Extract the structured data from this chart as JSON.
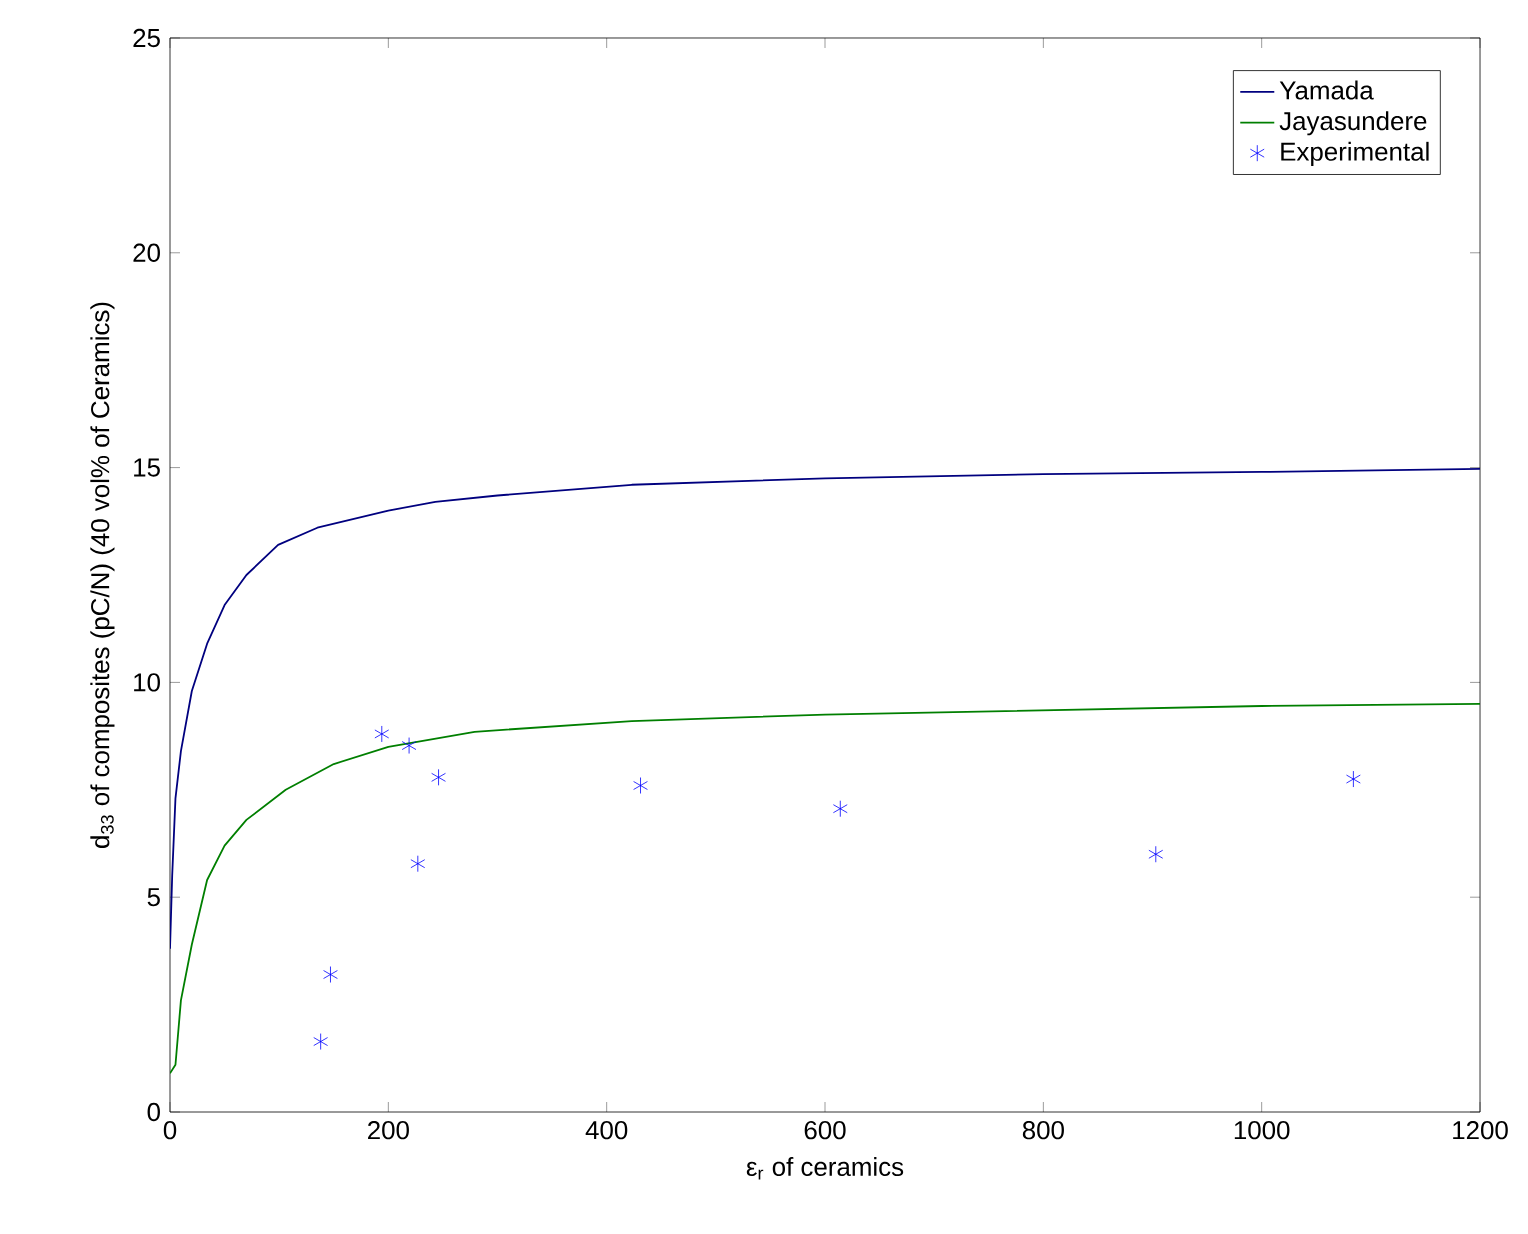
{
  "chart_data": {
    "type": "line",
    "xlabel": "ε$_{r}$ of ceramics",
    "ylabel": "d$_{33}$ of composites (pC/N) (40 vol% of Ceramics)",
    "xlim": [
      0,
      1200
    ],
    "ylim": [
      0,
      25
    ],
    "xticks": [
      0,
      200,
      400,
      600,
      800,
      1000,
      1200
    ],
    "yticks": [
      0,
      5,
      10,
      15,
      20,
      25
    ],
    "grid": false,
    "legend": "top right",
    "series": [
      {
        "name": "Yamada",
        "color": "#00007f",
        "marker": "none",
        "x": [
          0,
          2,
          5,
          10,
          20,
          34,
          50,
          70,
          99,
          135,
          200,
          243,
          300,
          423,
          600,
          800,
          1000,
          1200
        ],
        "values": [
          3.8,
          5.5,
          7.3,
          8.4,
          9.8,
          10.9,
          11.8,
          12.5,
          13.2,
          13.6,
          14.0,
          14.2,
          14.35,
          14.6,
          14.75,
          14.85,
          14.9,
          14.97
        ]
      },
      {
        "name": "Jayasundere",
        "color": "#007f00",
        "marker": "none",
        "x": [
          0,
          5,
          10,
          20,
          34,
          50,
          70,
          106,
          150,
          200,
          279,
          423,
          600,
          800,
          1000,
          1200
        ],
        "values": [
          0.9,
          1.1,
          2.6,
          3.9,
          5.4,
          6.2,
          6.8,
          7.5,
          8.1,
          8.5,
          8.85,
          9.1,
          9.25,
          9.35,
          9.45,
          9.5
        ]
      },
      {
        "name": "Experimental",
        "type": "scatter",
        "color": "#0000ff",
        "marker": "cross",
        "x": [
          138,
          147,
          194,
          219,
          227,
          246,
          431,
          614,
          903,
          1084
        ],
        "values": [
          1.64,
          3.2,
          8.8,
          8.53,
          5.78,
          7.79,
          7.6,
          7.06,
          6.0,
          7.75
        ]
      }
    ]
  }
}
